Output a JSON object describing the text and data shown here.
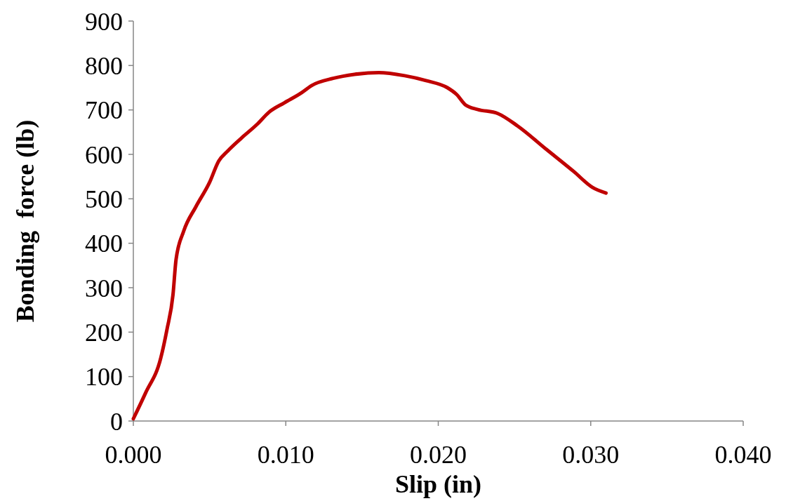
{
  "chart_data": {
    "type": "line",
    "xlabel": "Slip (in)",
    "ylabel": "Bonding  force (lb)",
    "xlim": [
      0,
      0.04
    ],
    "xticks": [
      {
        "value": 0,
        "label": "0.000"
      },
      {
        "value": 0.01,
        "label": "0.010"
      },
      {
        "value": 0.02,
        "label": "0.020"
      },
      {
        "value": 0.03,
        "label": "0.030"
      },
      {
        "value": 0.04,
        "label": "0.040"
      }
    ],
    "ylim": [
      0,
      900
    ],
    "yticks": [
      0,
      100,
      200,
      300,
      400,
      500,
      600,
      700,
      800,
      900
    ],
    "grid": false,
    "marker": "none",
    "line_style": "solid",
    "series": [
      {
        "color": "#c00000",
        "x": [
          0,
          0.0008,
          0.0018,
          0.0022,
          0.0026,
          0.0028,
          0.0033,
          0.0041,
          0.005,
          0.0056,
          0.0062,
          0.0071,
          0.0081,
          0.0089,
          0.0099,
          0.011,
          0.0117,
          0.0131,
          0.0145,
          0.0161,
          0.0178,
          0.0192,
          0.0206,
          0.0212,
          0.0218,
          0.0226,
          0.0239,
          0.0252,
          0.0271,
          0.0289,
          0.0301,
          0.031
        ],
        "values": [
          5,
          63,
          142,
          205,
          284,
          363,
          427,
          482,
          537,
          585,
          608,
          637,
          667,
          695,
          716,
          738,
          755,
          771,
          780,
          784,
          777,
          766,
          750,
          735,
          711,
          701,
          692,
          664,
          611,
          561,
          526,
          513
        ]
      }
    ]
  }
}
